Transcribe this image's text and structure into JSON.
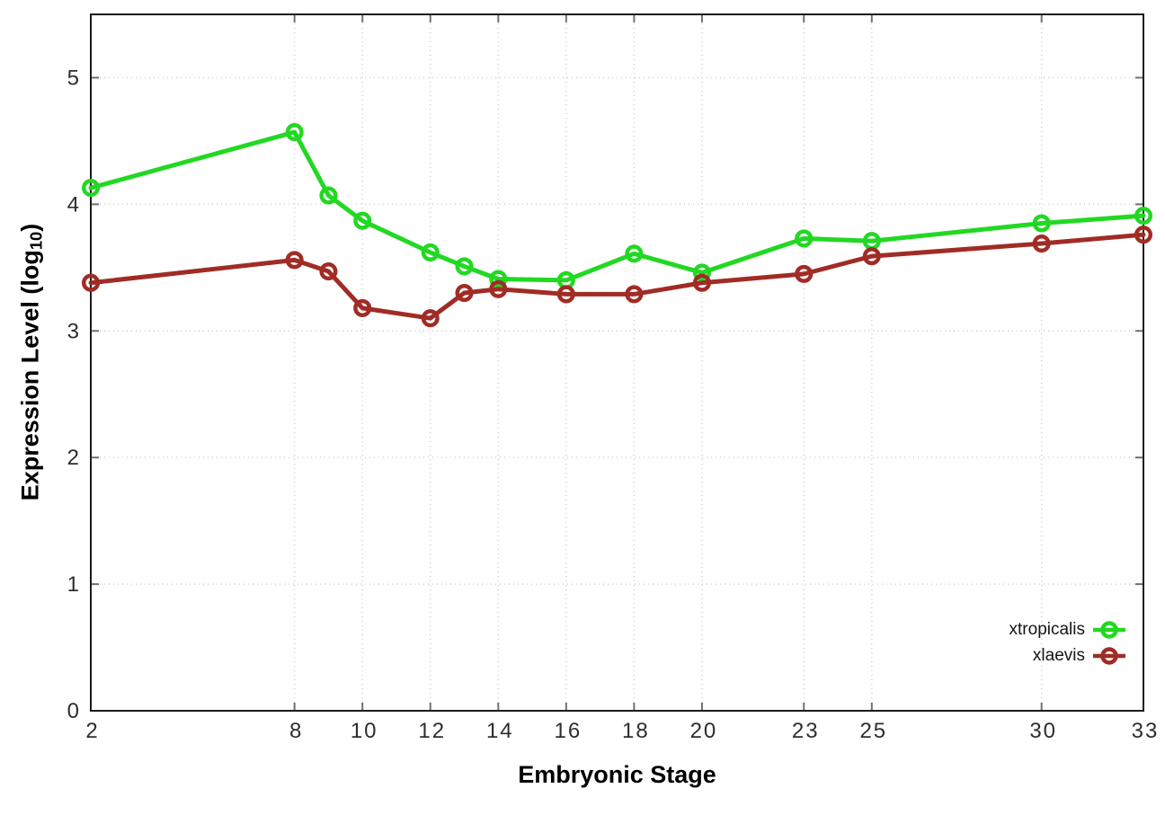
{
  "chart_data": {
    "type": "line",
    "title": "",
    "xlabel": "Embryonic Stage",
    "ylabel": "Expression Level (log10)",
    "ylabel_rich": {
      "pre": "Expression Level (log",
      "sub": "10",
      "post": ")"
    },
    "xlim": [
      2,
      33
    ],
    "ylim": [
      0,
      5.5
    ],
    "x_ticks": [
      2,
      8,
      10,
      12,
      14,
      16,
      18,
      20,
      23,
      25,
      30,
      33
    ],
    "y_ticks": [
      0,
      1,
      2,
      3,
      4,
      5
    ],
    "grid": true,
    "legend_position": "inside-bottom-right",
    "x": [
      2,
      8,
      9,
      10,
      12,
      13,
      14,
      16,
      18,
      20,
      23,
      25,
      30,
      33
    ],
    "series": [
      {
        "name": "xtropicalis",
        "color": "#22d822",
        "marker": "open-circle",
        "values": [
          4.13,
          4.57,
          4.07,
          3.87,
          3.62,
          3.51,
          3.41,
          3.4,
          3.61,
          3.46,
          3.73,
          3.71,
          3.85,
          3.91
        ]
      },
      {
        "name": "xlaevis",
        "color": "#a02c26",
        "marker": "open-circle",
        "values": [
          3.38,
          3.56,
          3.47,
          3.18,
          3.1,
          3.3,
          3.33,
          3.29,
          3.29,
          3.38,
          3.45,
          3.59,
          3.69,
          3.76
        ]
      }
    ],
    "colors": {
      "grid": "#cfcfcf",
      "frame": "#1b1b1b",
      "tick": "#707070",
      "tick_label": "#2e2e2e"
    }
  }
}
